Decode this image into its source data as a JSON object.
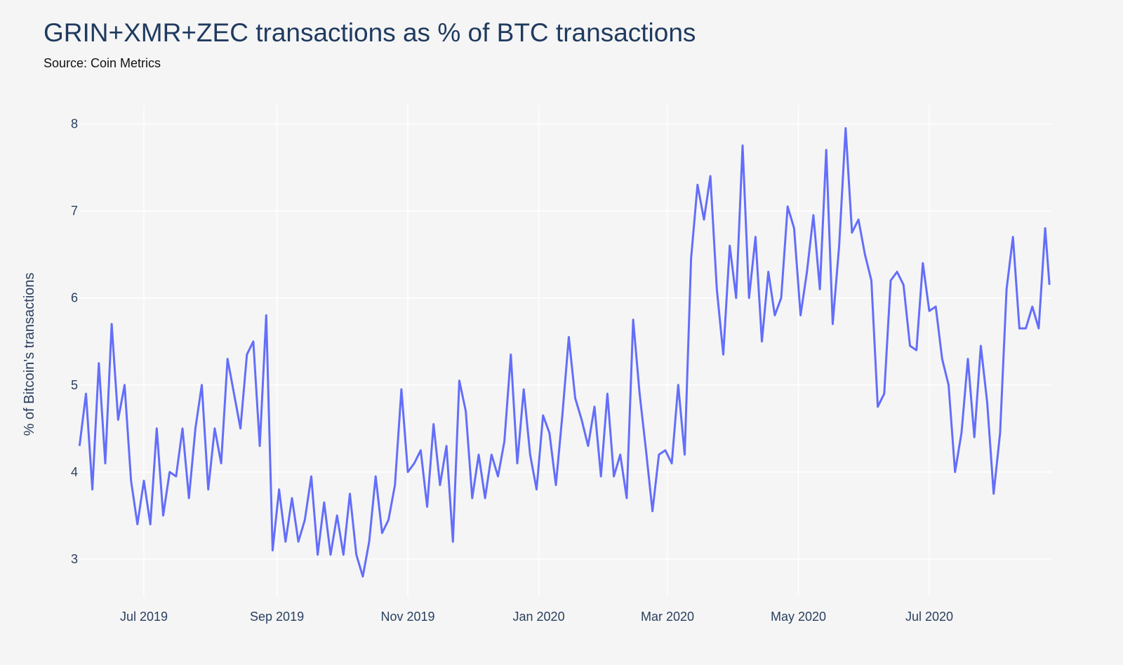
{
  "chart_data": {
    "type": "line",
    "title": "GRIN+XMR+ZEC transactions as % of BTC transactions",
    "subtitle": "Source: Coin Metrics",
    "xlabel": "",
    "ylabel": "% of Bitcoin's transactions",
    "ylim": [
      2.6,
      8.2
    ],
    "y_ticks": [
      3,
      4,
      5,
      6,
      7,
      8
    ],
    "x_ticks": [
      {
        "date": "2019-07-01",
        "label": "Jul 2019"
      },
      {
        "date": "2019-09-01",
        "label": "Sep 2019"
      },
      {
        "date": "2019-11-01",
        "label": "Nov 2019"
      },
      {
        "date": "2020-01-01",
        "label": "Jan 2020"
      },
      {
        "date": "2020-03-01",
        "label": "Mar 2020"
      },
      {
        "date": "2020-05-01",
        "label": "May 2020"
      },
      {
        "date": "2020-07-01",
        "label": "Jul 2020"
      }
    ],
    "grid": true,
    "line_color": "#636efa",
    "background": "#f5f5f5",
    "points": [
      [
        "2019-06-01",
        4.3
      ],
      [
        "2019-06-04",
        4.9
      ],
      [
        "2019-06-07",
        3.8
      ],
      [
        "2019-06-10",
        5.25
      ],
      [
        "2019-06-13",
        4.1
      ],
      [
        "2019-06-16",
        5.7
      ],
      [
        "2019-06-19",
        4.6
      ],
      [
        "2019-06-22",
        5.0
      ],
      [
        "2019-06-25",
        3.9
      ],
      [
        "2019-06-28",
        3.4
      ],
      [
        "2019-07-01",
        3.9
      ],
      [
        "2019-07-04",
        3.4
      ],
      [
        "2019-07-07",
        4.5
      ],
      [
        "2019-07-10",
        3.5
      ],
      [
        "2019-07-13",
        4.0
      ],
      [
        "2019-07-16",
        3.95
      ],
      [
        "2019-07-19",
        4.5
      ],
      [
        "2019-07-22",
        3.7
      ],
      [
        "2019-07-25",
        4.5
      ],
      [
        "2019-07-28",
        5.0
      ],
      [
        "2019-07-31",
        3.8
      ],
      [
        "2019-08-03",
        4.5
      ],
      [
        "2019-08-06",
        4.1
      ],
      [
        "2019-08-09",
        5.3
      ],
      [
        "2019-08-12",
        4.9
      ],
      [
        "2019-08-15",
        4.5
      ],
      [
        "2019-08-18",
        5.35
      ],
      [
        "2019-08-21",
        5.5
      ],
      [
        "2019-08-24",
        4.3
      ],
      [
        "2019-08-27",
        5.8
      ],
      [
        "2019-08-30",
        3.1
      ],
      [
        "2019-09-02",
        3.8
      ],
      [
        "2019-09-05",
        3.2
      ],
      [
        "2019-09-08",
        3.7
      ],
      [
        "2019-09-11",
        3.2
      ],
      [
        "2019-09-14",
        3.45
      ],
      [
        "2019-09-17",
        3.95
      ],
      [
        "2019-09-20",
        3.05
      ],
      [
        "2019-09-23",
        3.65
      ],
      [
        "2019-09-26",
        3.05
      ],
      [
        "2019-09-29",
        3.5
      ],
      [
        "2019-10-02",
        3.05
      ],
      [
        "2019-10-05",
        3.75
      ],
      [
        "2019-10-08",
        3.05
      ],
      [
        "2019-10-11",
        2.8
      ],
      [
        "2019-10-14",
        3.2
      ],
      [
        "2019-10-17",
        3.95
      ],
      [
        "2019-10-20",
        3.3
      ],
      [
        "2019-10-23",
        3.45
      ],
      [
        "2019-10-26",
        3.85
      ],
      [
        "2019-10-29",
        4.95
      ],
      [
        "2019-11-01",
        4.0
      ],
      [
        "2019-11-04",
        4.1
      ],
      [
        "2019-11-07",
        4.25
      ],
      [
        "2019-11-10",
        3.6
      ],
      [
        "2019-11-13",
        4.55
      ],
      [
        "2019-11-16",
        3.85
      ],
      [
        "2019-11-19",
        4.3
      ],
      [
        "2019-11-22",
        3.2
      ],
      [
        "2019-11-25",
        5.05
      ],
      [
        "2019-11-28",
        4.7
      ],
      [
        "2019-12-01",
        3.7
      ],
      [
        "2019-12-04",
        4.2
      ],
      [
        "2019-12-07",
        3.7
      ],
      [
        "2019-12-10",
        4.2
      ],
      [
        "2019-12-13",
        3.95
      ],
      [
        "2019-12-16",
        4.35
      ],
      [
        "2019-12-19",
        5.35
      ],
      [
        "2019-12-22",
        4.1
      ],
      [
        "2019-12-25",
        4.95
      ],
      [
        "2019-12-28",
        4.2
      ],
      [
        "2019-12-31",
        3.8
      ],
      [
        "2020-01-03",
        4.65
      ],
      [
        "2020-01-06",
        4.45
      ],
      [
        "2020-01-09",
        3.85
      ],
      [
        "2020-01-12",
        4.65
      ],
      [
        "2020-01-15",
        5.55
      ],
      [
        "2020-01-18",
        4.85
      ],
      [
        "2020-01-21",
        4.6
      ],
      [
        "2020-01-24",
        4.3
      ],
      [
        "2020-01-27",
        4.75
      ],
      [
        "2020-01-30",
        3.95
      ],
      [
        "2020-02-02",
        4.9
      ],
      [
        "2020-02-05",
        3.95
      ],
      [
        "2020-02-08",
        4.2
      ],
      [
        "2020-02-11",
        3.7
      ],
      [
        "2020-02-14",
        5.75
      ],
      [
        "2020-02-17",
        4.9
      ],
      [
        "2020-02-20",
        4.25
      ],
      [
        "2020-02-23",
        3.55
      ],
      [
        "2020-02-26",
        4.2
      ],
      [
        "2020-02-29",
        4.25
      ],
      [
        "2020-03-03",
        4.1
      ],
      [
        "2020-03-06",
        5.0
      ],
      [
        "2020-03-09",
        4.2
      ],
      [
        "2020-03-12",
        6.45
      ],
      [
        "2020-03-15",
        7.3
      ],
      [
        "2020-03-18",
        6.9
      ],
      [
        "2020-03-21",
        7.4
      ],
      [
        "2020-03-24",
        6.1
      ],
      [
        "2020-03-27",
        5.35
      ],
      [
        "2020-03-30",
        6.6
      ],
      [
        "2020-04-02",
        6.0
      ],
      [
        "2020-04-05",
        7.75
      ],
      [
        "2020-04-08",
        6.0
      ],
      [
        "2020-04-11",
        6.7
      ],
      [
        "2020-04-14",
        5.5
      ],
      [
        "2020-04-17",
        6.3
      ],
      [
        "2020-04-20",
        5.8
      ],
      [
        "2020-04-23",
        6.0
      ],
      [
        "2020-04-26",
        7.05
      ],
      [
        "2020-04-29",
        6.8
      ],
      [
        "2020-05-02",
        5.8
      ],
      [
        "2020-05-05",
        6.3
      ],
      [
        "2020-05-08",
        6.95
      ],
      [
        "2020-05-11",
        6.1
      ],
      [
        "2020-05-14",
        7.7
      ],
      [
        "2020-05-17",
        5.7
      ],
      [
        "2020-05-20",
        6.6
      ],
      [
        "2020-05-23",
        7.95
      ],
      [
        "2020-05-26",
        6.75
      ],
      [
        "2020-05-29",
        6.9
      ],
      [
        "2020-06-01",
        6.5
      ],
      [
        "2020-06-04",
        6.2
      ],
      [
        "2020-06-07",
        4.75
      ],
      [
        "2020-06-10",
        4.9
      ],
      [
        "2020-06-13",
        6.2
      ],
      [
        "2020-06-16",
        6.3
      ],
      [
        "2020-06-19",
        6.15
      ],
      [
        "2020-06-22",
        5.45
      ],
      [
        "2020-06-25",
        5.4
      ],
      [
        "2020-06-28",
        6.4
      ],
      [
        "2020-07-01",
        5.85
      ],
      [
        "2020-07-04",
        5.9
      ],
      [
        "2020-07-07",
        5.3
      ],
      [
        "2020-07-10",
        5.0
      ],
      [
        "2020-07-13",
        4.0
      ],
      [
        "2020-07-16",
        4.45
      ],
      [
        "2020-07-19",
        5.3
      ],
      [
        "2020-07-22",
        4.4
      ],
      [
        "2020-07-25",
        5.45
      ],
      [
        "2020-07-28",
        4.8
      ],
      [
        "2020-07-31",
        3.75
      ],
      [
        "2020-08-03",
        4.45
      ],
      [
        "2020-08-06",
        6.1
      ],
      [
        "2020-08-09",
        6.7
      ],
      [
        "2020-08-12",
        5.65
      ],
      [
        "2020-08-15",
        5.65
      ],
      [
        "2020-08-18",
        5.9
      ],
      [
        "2020-08-21",
        5.65
      ],
      [
        "2020-08-24",
        6.8
      ],
      [
        "2020-08-26",
        6.15
      ]
    ]
  }
}
